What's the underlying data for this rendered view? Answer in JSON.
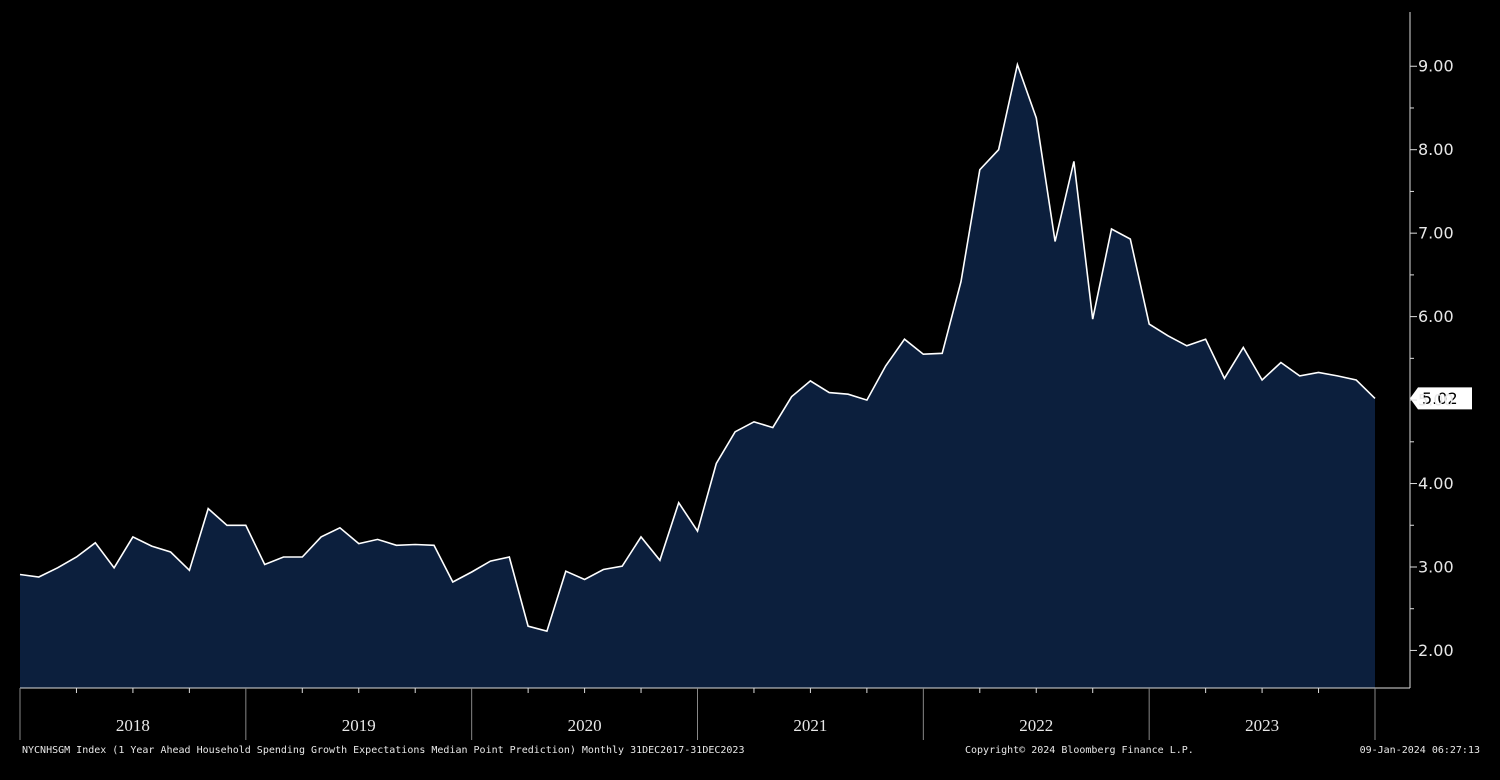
{
  "chart_data": {
    "type": "area",
    "categories": [
      null,
      null,
      null,
      null,
      null,
      null,
      "2018",
      null,
      null,
      null,
      null,
      null,
      null,
      null,
      null,
      null,
      null,
      null,
      "2019",
      null,
      null,
      null,
      null,
      null,
      null,
      null,
      null,
      null,
      null,
      null,
      "2020",
      null,
      null,
      null,
      null,
      null,
      null,
      null,
      null,
      null,
      null,
      null,
      "2021",
      null,
      null,
      null,
      null,
      null,
      null,
      null,
      null,
      null,
      null,
      null,
      "2022",
      null,
      null,
      null,
      null,
      null,
      null,
      null,
      null,
      null,
      null,
      null,
      "2023",
      null,
      null,
      null,
      null,
      null,
      null
    ],
    "series": [
      {
        "name": "NYCNHSGM Index",
        "color": "#ffffff",
        "fill": "#0c1f3d",
        "values": [
          2.91,
          2.88,
          2.99,
          3.12,
          3.29,
          2.99,
          3.36,
          3.25,
          3.18,
          2.96,
          3.7,
          3.5,
          3.5,
          3.03,
          3.12,
          3.12,
          3.36,
          3.47,
          3.28,
          3.33,
          3.26,
          3.27,
          3.26,
          2.82,
          2.94,
          3.07,
          3.12,
          2.29,
          2.23,
          2.95,
          2.85,
          2.97,
          3.01,
          3.36,
          3.08,
          3.77,
          3.43,
          4.24,
          4.62,
          4.74,
          4.67,
          5.04,
          5.23,
          5.09,
          5.07,
          5.0,
          5.41,
          5.73,
          5.55,
          5.56,
          6.42,
          7.76,
          8.0,
          9.02,
          8.38,
          6.9,
          7.86,
          5.97,
          7.05,
          6.93,
          5.91,
          5.77,
          5.65,
          5.73,
          5.26,
          5.63,
          5.24,
          5.45,
          5.29,
          5.33,
          5.29,
          5.24,
          5.02
        ]
      }
    ],
    "ylim": [
      1.55,
      9.65
    ],
    "yticks": [
      {
        "value": 2,
        "label": "2.00"
      },
      {
        "value": 3,
        "label": "3.00"
      },
      {
        "value": 4,
        "label": "4.00"
      },
      {
        "value": 5,
        "label": "5.00"
      },
      {
        "value": 6,
        "label": "6.00"
      },
      {
        "value": 7,
        "label": "7.00"
      },
      {
        "value": 8,
        "label": "8.00"
      },
      {
        "value": 9,
        "label": "9.00"
      }
    ],
    "source": "NYCNHSGM Index (1 Year Ahead Household Spending Growth Expectations Median Point Prediction) Monthly 31DEC2017-31DEC2023",
    "copyright": "Copyright© 2024 Bloomberg Finance L.P.",
    "timestamp": "09-Jan-2024 06:27:13"
  }
}
